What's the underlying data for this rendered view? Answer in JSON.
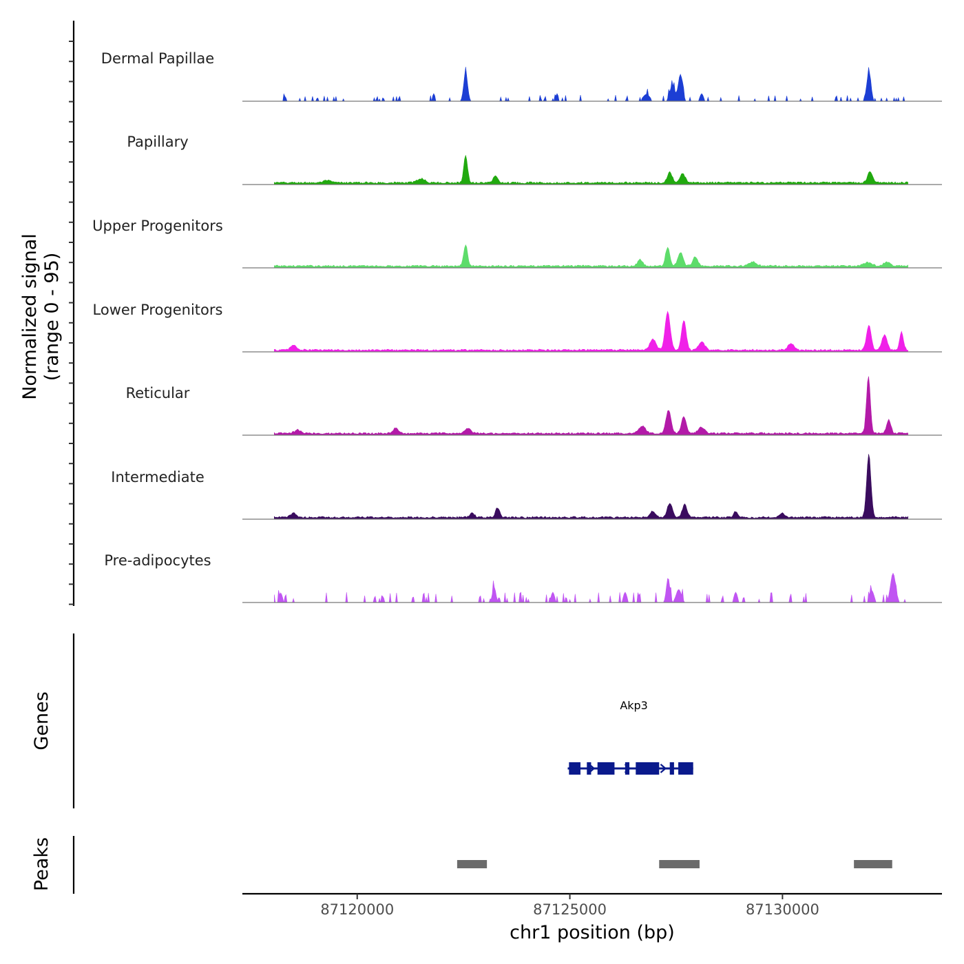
{
  "chart_data": {
    "type": "area",
    "title": "",
    "ylabel_line1": "Normalized signal",
    "ylabel_line2": "(range 0 - 95)",
    "yrange": [
      0,
      95
    ],
    "xlabel": "chr1 position (bp)",
    "xlim": [
      87117300,
      87133750
    ],
    "data_extent": [
      87118050,
      87132950
    ],
    "xticks": [
      87120000,
      87125000,
      87130000
    ],
    "xtick_labels": [
      "87120000",
      "87125000",
      "87130000"
    ],
    "tracks": [
      {
        "name": "Dermal Papillae",
        "color": "#1c3ed4",
        "style": "spiky",
        "peaks": [
          [
            87122550,
            85,
            45
          ],
          [
            87127410,
            45,
            60
          ],
          [
            87127600,
            78,
            50
          ],
          [
            87132030,
            82,
            50
          ],
          [
            87124700,
            22,
            30
          ],
          [
            87126800,
            20,
            80
          ],
          [
            87128100,
            22,
            40
          ],
          [
            87118300,
            14,
            30
          ],
          [
            87121800,
            22,
            30
          ]
        ]
      },
      {
        "name": "Papillary",
        "color": "#21a90f",
        "style": "smooth",
        "peaks": [
          [
            87122550,
            78,
            45
          ],
          [
            87123250,
            22,
            50
          ],
          [
            87127350,
            30,
            60
          ],
          [
            87127650,
            28,
            60
          ],
          [
            87132060,
            32,
            60
          ],
          [
            87121500,
            12,
            90
          ],
          [
            87119300,
            6,
            90
          ]
        ]
      },
      {
        "name": "Upper Progenitors",
        "color": "#5ddc6a",
        "style": "smooth",
        "peaks": [
          [
            87122550,
            62,
            45
          ],
          [
            87127300,
            55,
            50
          ],
          [
            87127600,
            40,
            60
          ],
          [
            87127950,
            28,
            60
          ],
          [
            87126650,
            18,
            60
          ],
          [
            87129300,
            12,
            90
          ],
          [
            87132000,
            10,
            110
          ],
          [
            87132450,
            12,
            70
          ]
        ]
      },
      {
        "name": "Lower Progenitors",
        "color": "#f020e8",
        "style": "smooth",
        "peaks": [
          [
            87127300,
            112,
            60
          ],
          [
            87127680,
            88,
            55
          ],
          [
            87126950,
            32,
            70
          ],
          [
            87128100,
            25,
            70
          ],
          [
            87132030,
            72,
            55
          ],
          [
            87132400,
            45,
            60
          ],
          [
            87132800,
            52,
            45
          ],
          [
            87130200,
            20,
            70
          ],
          [
            87118500,
            14,
            70
          ]
        ]
      },
      {
        "name": "Reticular",
        "color": "#b31aa8",
        "style": "smooth",
        "peaks": [
          [
            87132020,
            165,
            45
          ],
          [
            87132500,
            40,
            50
          ],
          [
            87127320,
            68,
            60
          ],
          [
            87127680,
            50,
            55
          ],
          [
            87126700,
            22,
            80
          ],
          [
            87128100,
            18,
            80
          ],
          [
            87122600,
            14,
            70
          ],
          [
            87120900,
            14,
            70
          ],
          [
            87118600,
            10,
            70
          ]
        ]
      },
      {
        "name": "Intermediate",
        "color": "#3a0c5e",
        "style": "smooth",
        "peaks": [
          [
            87132030,
            182,
            50
          ],
          [
            87127350,
            42,
            60
          ],
          [
            87127700,
            38,
            55
          ],
          [
            87126950,
            18,
            60
          ],
          [
            87123300,
            28,
            50
          ],
          [
            87122700,
            15,
            50
          ],
          [
            87128900,
            18,
            50
          ],
          [
            87130000,
            14,
            50
          ],
          [
            87118500,
            14,
            60
          ]
        ]
      },
      {
        "name": "Pre-adipocytes",
        "color": "#c055f2",
        "style": "blocky",
        "peaks": [
          [
            87127310,
            72,
            40
          ],
          [
            87127560,
            38,
            60
          ],
          [
            87132600,
            85,
            60
          ],
          [
            87132100,
            35,
            50
          ],
          [
            87123220,
            45,
            40
          ],
          [
            87126300,
            30,
            40
          ],
          [
            87128900,
            30,
            40
          ],
          [
            87118200,
            28,
            40
          ],
          [
            87124600,
            30,
            40
          ]
        ]
      }
    ],
    "genes_label": "Genes",
    "genes": [
      {
        "name": "Akp3",
        "start": 87124950,
        "end": 87127900,
        "strand": "+",
        "exons": [
          [
            87124980,
            87125250
          ],
          [
            87125400,
            87125500
          ],
          [
            87125650,
            87126050
          ],
          [
            87126300,
            87126400
          ],
          [
            87126550,
            87126950
          ],
          [
            87126950,
            87127100
          ],
          [
            87127350,
            87127450
          ],
          [
            87127550,
            87127900
          ]
        ]
      }
    ],
    "peaks_label": "Peaks",
    "peak_regions": [
      [
        87122350,
        87123050
      ],
      [
        87127100,
        87128050
      ],
      [
        87131680,
        87132580
      ]
    ]
  }
}
